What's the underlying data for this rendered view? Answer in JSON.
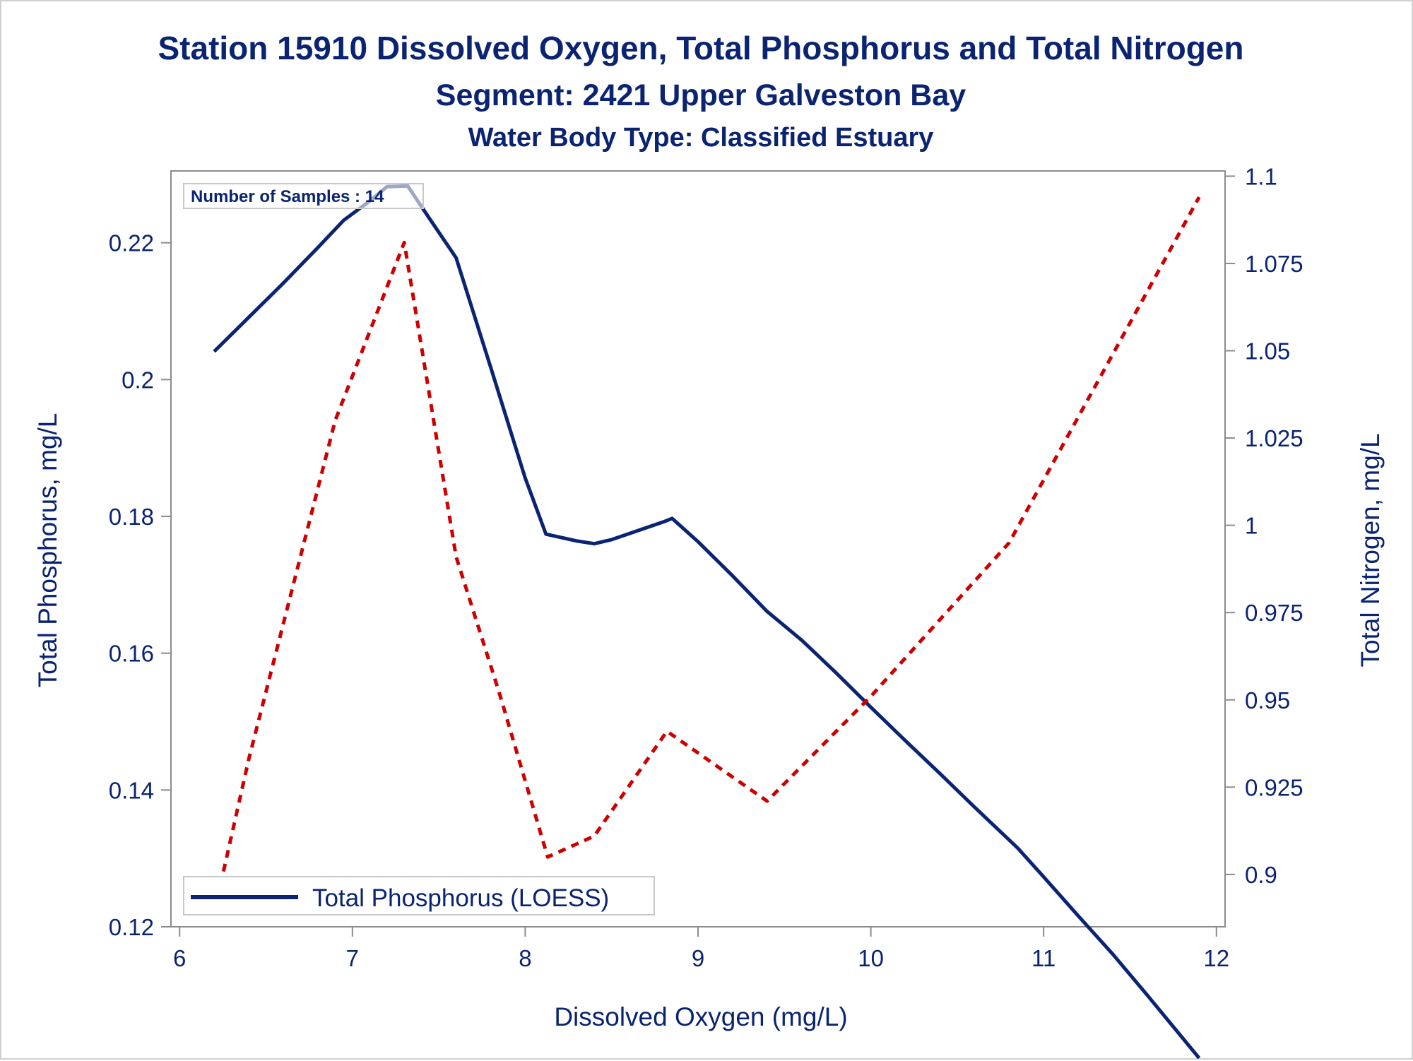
{
  "chart_data": {
    "type": "line",
    "title": "Station 15910  Dissolved Oxygen, Total Phosphorus and Total Nitrogen",
    "subtitle": "Segment: 2421  Upper Galveston Bay",
    "subtitle2": "Water Body Type: Classified Estuary",
    "xlabel": "Dissolved Oxygen (mg/L)",
    "ylabel": "Total Phosphorus, mg/L",
    "y2label": "Total Nitrogen, mg/L",
    "xlim": [
      5.95,
      12.05
    ],
    "ylim": [
      0.12,
      0.2305
    ],
    "y2lim": [
      0.885,
      1.1015
    ],
    "x_ticks": [
      "6",
      "7",
      "8",
      "9",
      "10",
      "11",
      "12"
    ],
    "y_ticks": [
      "0.12",
      "0.14",
      "0.16",
      "0.18",
      "0.2",
      "0.22"
    ],
    "y2_ticks": [
      "0.9",
      "0.925",
      "0.95",
      "0.975",
      "1",
      "1.025",
      "1.05",
      "1.075",
      "1.1"
    ],
    "annotation": "Number of Samples : 14",
    "legend": {
      "placement": "bottom-left",
      "label": "Total Phosphorus (LOESS)"
    },
    "grid": false,
    "series": [
      {
        "name": "Total Phosphorus (LOESS)",
        "axis": "left",
        "style": "solid",
        "color": "#0a2472",
        "x": [
          6.2,
          6.4,
          6.6,
          6.8,
          6.95,
          7.1,
          7.2,
          7.32,
          7.45,
          7.6,
          7.8,
          8.0,
          8.12,
          8.3,
          8.4,
          8.5,
          8.8,
          8.85,
          9.0,
          9.2,
          9.4,
          9.6,
          9.8,
          10.0,
          10.2,
          10.4,
          10.6,
          10.85,
          11.0,
          11.2,
          11.4,
          11.6,
          11.9
        ],
        "values": [
          0.2041,
          0.2091,
          0.2141,
          0.2193,
          0.2233,
          0.2261,
          0.2282,
          0.2283,
          0.2234,
          0.2178,
          0.2018,
          0.1856,
          0.1774,
          0.1764,
          0.176,
          0.1766,
          0.1792,
          0.1797,
          0.1763,
          0.1713,
          0.1661,
          0.1619,
          0.1571,
          0.1521,
          0.1472,
          0.1424,
          0.1375,
          0.1315,
          0.1273,
          0.1216,
          0.116,
          0.11,
          0.1008
        ]
      },
      {
        "name": "",
        "axis": "right",
        "style": "dashed",
        "color": "#cc0000",
        "x": [
          6.2,
          6.4,
          6.9,
          7.3,
          7.6,
          7.85,
          8.13,
          8.4,
          8.82,
          9.4,
          10.0,
          10.8,
          11.9
        ],
        "values": [
          0.889,
          0.933,
          1.03,
          1.081,
          0.991,
          0.952,
          0.905,
          0.911,
          0.941,
          0.921,
          0.951,
          0.995,
          1.094
        ]
      }
    ]
  }
}
